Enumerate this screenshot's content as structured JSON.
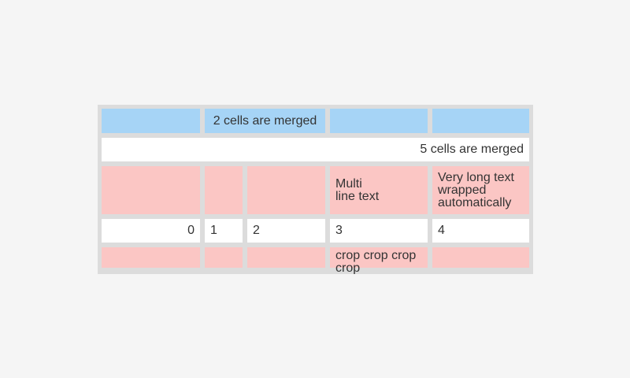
{
  "colors": {
    "page_background": "#f5f5f5",
    "table_frame": "#dcdcdc",
    "cell_blue": "#a6d4f6",
    "cell_pink": "#fbc6c4",
    "cell_white": "#ffffff",
    "text": "#333333"
  },
  "table": {
    "row1": {
      "merged_cell_label": "2 cells are merged"
    },
    "row2": {
      "merged_cell_label": "5 cells are merged"
    },
    "row3": {
      "multiline_cell": "Multi\nline text",
      "wrapped_cell": "Very long text wrapped automatically"
    },
    "row4": {
      "cells": [
        "0",
        "1",
        "2",
        "3",
        "4"
      ]
    },
    "row5": {
      "cropped_cell": "crop crop crop crop"
    }
  }
}
